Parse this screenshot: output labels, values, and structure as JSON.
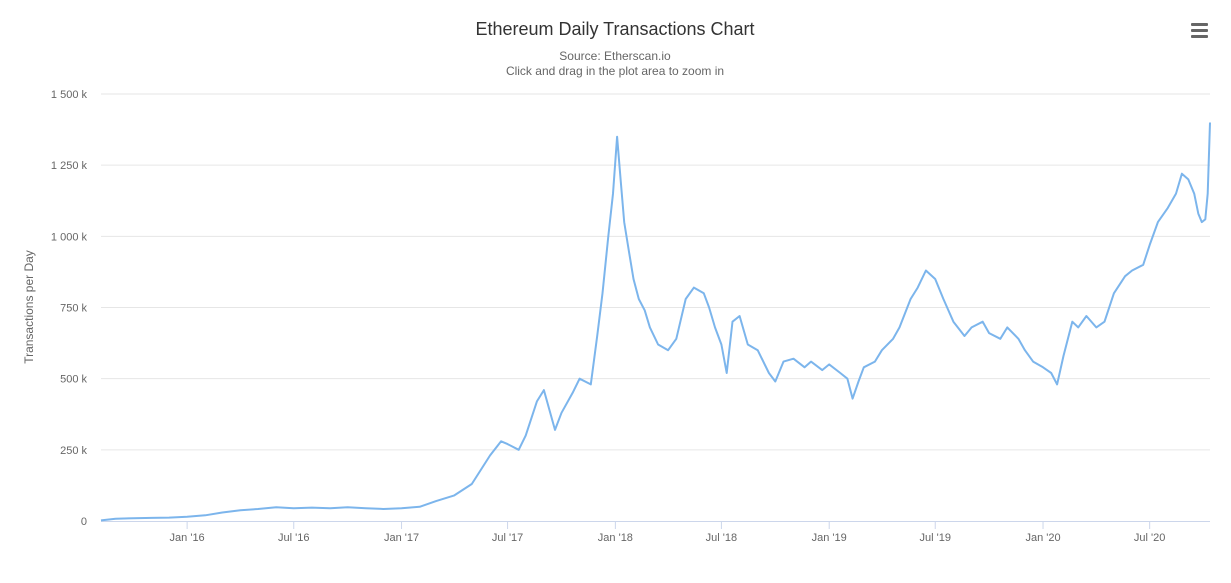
{
  "chart_data": {
    "type": "line",
    "title": "Ethereum Daily Transactions Chart",
    "subtitle_lines": [
      "Source: Etherscan.io",
      "Click and drag in the plot area to zoom in"
    ],
    "ylabel": "Transactions per Day",
    "xlabel": "",
    "ylim": [
      0,
      1500000
    ],
    "xlim": [
      "2015-08-07",
      "2020-10-12"
    ],
    "y_ticks": [
      {
        "value": 0,
        "label": "0"
      },
      {
        "value": 250000,
        "label": "250 k"
      },
      {
        "value": 500000,
        "label": "500 k"
      },
      {
        "value": 750000,
        "label": "750 k"
      },
      {
        "value": 1000000,
        "label": "1 000 k"
      },
      {
        "value": 1250000,
        "label": "1 250 k"
      },
      {
        "value": 1500000,
        "label": "1 500 k"
      }
    ],
    "x_ticks": [
      {
        "date": "2016-01-01",
        "label": "Jan '16"
      },
      {
        "date": "2016-07-01",
        "label": "Jul '16"
      },
      {
        "date": "2017-01-01",
        "label": "Jan '17"
      },
      {
        "date": "2017-07-01",
        "label": "Jul '17"
      },
      {
        "date": "2018-01-01",
        "label": "Jan '18"
      },
      {
        "date": "2018-07-01",
        "label": "Jul '18"
      },
      {
        "date": "2019-01-01",
        "label": "Jan '19"
      },
      {
        "date": "2019-07-01",
        "label": "Jul '19"
      },
      {
        "date": "2020-01-01",
        "label": "Jan '20"
      },
      {
        "date": "2020-07-01",
        "label": "Jul '20"
      }
    ],
    "grid": true,
    "legend": "none",
    "series": [
      {
        "color": "#7cb5ec",
        "points": [
          [
            "2015-08-07",
            2000
          ],
          [
            "2015-09-01",
            8000
          ],
          [
            "2015-10-01",
            10000
          ],
          [
            "2015-11-01",
            11000
          ],
          [
            "2015-12-01",
            12000
          ],
          [
            "2016-01-01",
            15000
          ],
          [
            "2016-02-01",
            20000
          ],
          [
            "2016-03-01",
            30000
          ],
          [
            "2016-04-01",
            38000
          ],
          [
            "2016-05-01",
            42000
          ],
          [
            "2016-06-01",
            48000
          ],
          [
            "2016-07-01",
            45000
          ],
          [
            "2016-08-01",
            47000
          ],
          [
            "2016-09-01",
            45000
          ],
          [
            "2016-10-01",
            48000
          ],
          [
            "2016-11-01",
            45000
          ],
          [
            "2016-12-01",
            42000
          ],
          [
            "2017-01-01",
            45000
          ],
          [
            "2017-02-01",
            50000
          ],
          [
            "2017-03-01",
            70000
          ],
          [
            "2017-04-01",
            90000
          ],
          [
            "2017-05-01",
            130000
          ],
          [
            "2017-06-01",
            230000
          ],
          [
            "2017-06-20",
            280000
          ],
          [
            "2017-07-01",
            270000
          ],
          [
            "2017-07-20",
            250000
          ],
          [
            "2017-08-01",
            300000
          ],
          [
            "2017-08-20",
            420000
          ],
          [
            "2017-09-01",
            460000
          ],
          [
            "2017-09-20",
            320000
          ],
          [
            "2017-10-01",
            380000
          ],
          [
            "2017-10-20",
            450000
          ],
          [
            "2017-11-01",
            500000
          ],
          [
            "2017-11-20",
            480000
          ],
          [
            "2017-12-01",
            650000
          ],
          [
            "2017-12-10",
            800000
          ],
          [
            "2017-12-20",
            1000000
          ],
          [
            "2017-12-28",
            1150000
          ],
          [
            "2018-01-04",
            1350000
          ],
          [
            "2018-01-10",
            1200000
          ],
          [
            "2018-01-16",
            1050000
          ],
          [
            "2018-01-24",
            950000
          ],
          [
            "2018-02-01",
            850000
          ],
          [
            "2018-02-10",
            780000
          ],
          [
            "2018-02-20",
            740000
          ],
          [
            "2018-03-01",
            680000
          ],
          [
            "2018-03-15",
            620000
          ],
          [
            "2018-04-01",
            600000
          ],
          [
            "2018-04-15",
            640000
          ],
          [
            "2018-05-01",
            780000
          ],
          [
            "2018-05-15",
            820000
          ],
          [
            "2018-06-01",
            800000
          ],
          [
            "2018-06-10",
            750000
          ],
          [
            "2018-06-20",
            680000
          ],
          [
            "2018-07-01",
            620000
          ],
          [
            "2018-07-10",
            520000
          ],
          [
            "2018-07-20",
            700000
          ],
          [
            "2018-08-01",
            720000
          ],
          [
            "2018-08-15",
            620000
          ],
          [
            "2018-09-01",
            600000
          ],
          [
            "2018-09-20",
            520000
          ],
          [
            "2018-10-01",
            490000
          ],
          [
            "2018-10-15",
            560000
          ],
          [
            "2018-11-01",
            570000
          ],
          [
            "2018-11-20",
            540000
          ],
          [
            "2018-12-01",
            560000
          ],
          [
            "2018-12-20",
            530000
          ],
          [
            "2019-01-01",
            550000
          ],
          [
            "2019-01-20",
            520000
          ],
          [
            "2019-02-01",
            500000
          ],
          [
            "2019-02-10",
            430000
          ],
          [
            "2019-02-20",
            490000
          ],
          [
            "2019-03-01",
            540000
          ],
          [
            "2019-03-20",
            560000
          ],
          [
            "2019-04-01",
            600000
          ],
          [
            "2019-04-20",
            640000
          ],
          [
            "2019-05-01",
            680000
          ],
          [
            "2019-05-20",
            780000
          ],
          [
            "2019-06-01",
            820000
          ],
          [
            "2019-06-15",
            880000
          ],
          [
            "2019-07-01",
            850000
          ],
          [
            "2019-07-15",
            780000
          ],
          [
            "2019-08-01",
            700000
          ],
          [
            "2019-08-20",
            650000
          ],
          [
            "2019-09-01",
            680000
          ],
          [
            "2019-09-20",
            700000
          ],
          [
            "2019-10-01",
            660000
          ],
          [
            "2019-10-20",
            640000
          ],
          [
            "2019-11-01",
            680000
          ],
          [
            "2019-11-20",
            640000
          ],
          [
            "2019-12-01",
            600000
          ],
          [
            "2019-12-15",
            560000
          ],
          [
            "2020-01-01",
            540000
          ],
          [
            "2020-01-15",
            520000
          ],
          [
            "2020-01-25",
            480000
          ],
          [
            "2020-02-05",
            580000
          ],
          [
            "2020-02-20",
            700000
          ],
          [
            "2020-03-01",
            680000
          ],
          [
            "2020-03-15",
            720000
          ],
          [
            "2020-04-01",
            680000
          ],
          [
            "2020-04-15",
            700000
          ],
          [
            "2020-05-01",
            800000
          ],
          [
            "2020-05-20",
            860000
          ],
          [
            "2020-06-01",
            880000
          ],
          [
            "2020-06-20",
            900000
          ],
          [
            "2020-07-01",
            970000
          ],
          [
            "2020-07-15",
            1050000
          ],
          [
            "2020-08-01",
            1100000
          ],
          [
            "2020-08-15",
            1150000
          ],
          [
            "2020-08-25",
            1220000
          ],
          [
            "2020-09-05",
            1200000
          ],
          [
            "2020-09-15",
            1150000
          ],
          [
            "2020-09-22",
            1080000
          ],
          [
            "2020-09-28",
            1050000
          ],
          [
            "2020-10-04",
            1060000
          ],
          [
            "2020-10-08",
            1150000
          ],
          [
            "2020-10-12",
            1400000
          ]
        ]
      }
    ]
  },
  "menu": {
    "icon": "hamburger-menu-icon"
  }
}
